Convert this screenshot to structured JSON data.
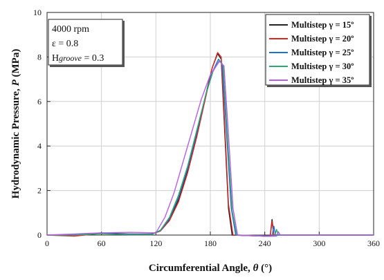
{
  "chart_data": {
    "type": "line",
    "xlabel_main": "Circumferential Angle, ",
    "xlabel_symbol": "θ",
    "xlabel_unit": " (°)",
    "ylabel_main": "Hydrodynamic Pressure, ",
    "ylabel_symbol": "P",
    "ylabel_unit": " (MPa)",
    "xlim": [
      0,
      360
    ],
    "ylim": [
      0,
      10
    ],
    "xticks": [
      "0",
      "60",
      "120",
      "180",
      "240",
      "300",
      "360"
    ],
    "yticks": [
      "0",
      "2",
      "4",
      "6",
      "8",
      "10"
    ],
    "grid": true,
    "legend_position": "top-right",
    "conditions": {
      "speed": "4000 rpm",
      "eccentricity": "ε = 0.8",
      "groove_prefix": "H",
      "groove_sub": "groove",
      "groove_value": " = 0.3"
    },
    "series": [
      {
        "name": "Multistep γ = 15º",
        "color": "#222222",
        "points": [
          [
            0,
            0
          ],
          [
            30,
            0
          ],
          [
            60,
            0.1
          ],
          [
            90,
            0.05
          ],
          [
            115,
            0.05
          ],
          [
            125,
            0.2
          ],
          [
            135,
            0.7
          ],
          [
            145,
            1.6
          ],
          [
            155,
            2.9
          ],
          [
            165,
            4.5
          ],
          [
            175,
            6.3
          ],
          [
            182,
            7.5
          ],
          [
            188,
            8.15
          ],
          [
            192,
            7.9
          ],
          [
            196,
            4.5
          ],
          [
            200,
            1.2
          ],
          [
            204,
            0
          ],
          [
            240,
            -0.05
          ],
          [
            246,
            -0.05
          ],
          [
            248,
            0.7
          ],
          [
            250,
            0
          ],
          [
            330,
            0
          ],
          [
            360,
            0
          ]
        ]
      },
      {
        "name": "Multistep γ = 20º",
        "color": "#dd2222",
        "points": [
          [
            0,
            0
          ],
          [
            30,
            -0.05
          ],
          [
            60,
            0.08
          ],
          [
            90,
            0.03
          ],
          [
            115,
            0.03
          ],
          [
            125,
            0.18
          ],
          [
            135,
            0.65
          ],
          [
            145,
            1.5
          ],
          [
            155,
            2.8
          ],
          [
            165,
            4.4
          ],
          [
            175,
            6.2
          ],
          [
            182,
            7.5
          ],
          [
            188,
            8.2
          ],
          [
            192,
            8.0
          ],
          [
            196,
            4.8
          ],
          [
            200,
            1.4
          ],
          [
            205,
            0
          ],
          [
            240,
            -0.05
          ],
          [
            246,
            -0.05
          ],
          [
            248,
            0.6
          ],
          [
            250,
            0
          ],
          [
            330,
            0
          ],
          [
            360,
            0
          ]
        ]
      },
      {
        "name": "Multistep γ = 25º",
        "color": "#1f6fd6",
        "points": [
          [
            0,
            0
          ],
          [
            30,
            0
          ],
          [
            60,
            0.08
          ],
          [
            90,
            0.03
          ],
          [
            115,
            0.03
          ],
          [
            125,
            0.2
          ],
          [
            135,
            0.75
          ],
          [
            145,
            1.7
          ],
          [
            155,
            3.0
          ],
          [
            165,
            4.6
          ],
          [
            175,
            6.3
          ],
          [
            182,
            7.3
          ],
          [
            189,
            7.9
          ],
          [
            193,
            7.7
          ],
          [
            198,
            4.5
          ],
          [
            203,
            1.2
          ],
          [
            208,
            0
          ],
          [
            245,
            -0.05
          ],
          [
            248,
            -0.05
          ],
          [
            250,
            0.4
          ],
          [
            252,
            0
          ],
          [
            330,
            0
          ],
          [
            360,
            0
          ]
        ]
      },
      {
        "name": "Multistep γ = 30º",
        "color": "#2fa86f",
        "points": [
          [
            0,
            0
          ],
          [
            30,
            0
          ],
          [
            60,
            0.06
          ],
          [
            90,
            0.02
          ],
          [
            115,
            0.02
          ],
          [
            125,
            0.22
          ],
          [
            135,
            0.8
          ],
          [
            145,
            1.8
          ],
          [
            155,
            3.1
          ],
          [
            165,
            4.7
          ],
          [
            175,
            6.3
          ],
          [
            183,
            7.35
          ],
          [
            190,
            7.85
          ],
          [
            194,
            7.6
          ],
          [
            199,
            4.3
          ],
          [
            204,
            1.1
          ],
          [
            209,
            0
          ],
          [
            248,
            -0.05
          ],
          [
            251,
            -0.05
          ],
          [
            253,
            0.25
          ],
          [
            255,
            0
          ],
          [
            330,
            0
          ],
          [
            360,
            0
          ]
        ]
      },
      {
        "name": "Multistep γ = 35º",
        "color": "#b45ee6",
        "points": [
          [
            0,
            0
          ],
          [
            30,
            0.05
          ],
          [
            60,
            0.1
          ],
          [
            92,
            0.12
          ],
          [
            120,
            0.1
          ],
          [
            130,
            0.8
          ],
          [
            140,
            1.9
          ],
          [
            150,
            3.3
          ],
          [
            160,
            4.7
          ],
          [
            170,
            6.1
          ],
          [
            180,
            7.2
          ],
          [
            190,
            7.8
          ],
          [
            195,
            7.6
          ],
          [
            200,
            4.5
          ],
          [
            205,
            1.2
          ],
          [
            210,
            0
          ],
          [
            250,
            -0.05
          ],
          [
            253,
            -0.05
          ],
          [
            255,
            0.15
          ],
          [
            257,
            0
          ],
          [
            330,
            0
          ],
          [
            360,
            0
          ]
        ]
      }
    ]
  }
}
